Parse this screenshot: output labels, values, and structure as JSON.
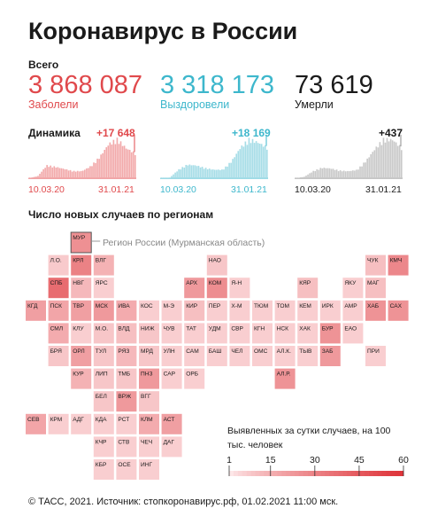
{
  "title": "Коронавирус в России",
  "total_label": "Всего",
  "cases": {
    "value": "3 868 087",
    "label": "Заболели",
    "increase": "+17 648",
    "color": "#e0494c"
  },
  "recovered": {
    "value": "3 318 173",
    "label": "Выздоровели",
    "increase": "+18 169",
    "color": "#3db7cc"
  },
  "deaths": {
    "value": "73 619",
    "label": "Умерли",
    "increase": "+437",
    "color": "#888888"
  },
  "dynamics_label": "Динамика",
  "date_start": "10.03.20",
  "date_end": "31.01.21",
  "regions_title": "Число новых случаев по регионам",
  "annotation": {
    "code": "МУР",
    "text": "Регион России (Мурманская область)"
  },
  "legend_note": "Выявленных за сутки случаев, на 100 тыс. человек",
  "legend_ticks": [
    "1",
    "15",
    "30",
    "45",
    "60"
  ],
  "footer": "© ТАСС, 2021. Источник: стопкоронавирус.рф, 01.02.2021 11:00 мск.",
  "chart_data": [
    {
      "type": "area",
      "name": "Заболели",
      "x_range": [
        "10.03.20",
        "31.01.21"
      ],
      "last_increase": 17648,
      "monthly_daily_approx": [
        20,
        1500,
        9000,
        8000,
        6500,
        5000,
        5000,
        8500,
        15000,
        24000,
        27500,
        21000,
        17648
      ]
    },
    {
      "type": "area",
      "name": "Выздоровели",
      "x_range": [
        "10.03.20",
        "31.01.21"
      ],
      "last_increase": 18169,
      "monthly_daily_approx": [
        0,
        300,
        5000,
        8000,
        7500,
        6000,
        5000,
        5000,
        10000,
        18000,
        23000,
        21000,
        18169
      ]
    },
    {
      "type": "area",
      "name": "Умерли",
      "x_range": [
        "10.03.20",
        "31.01.21"
      ],
      "last_increase": 437,
      "monthly_daily_approx": [
        0,
        20,
        100,
        150,
        140,
        110,
        100,
        120,
        250,
        420,
        560,
        550,
        437
      ]
    },
    {
      "type": "heatmap",
      "title": "Число новых случаев по регионам",
      "legend": {
        "ticks": [
          1,
          15,
          30,
          45,
          60
        ],
        "unit": "Выявленных за сутки случаев, на 100 тыс. человек"
      },
      "cells": [
        {
          "code": "МУР",
          "row": 0,
          "col": 2,
          "value": 25
        },
        {
          "code": "НАО",
          "row": 1,
          "col": 8,
          "value": 8
        },
        {
          "code": "ЧУК",
          "row": 1,
          "col": 15,
          "value": 10
        },
        {
          "code": "КМЧ",
          "row": 1,
          "col": 16,
          "value": 28
        },
        {
          "code": "Л.О.",
          "row": 1,
          "col": 1,
          "value": 7
        },
        {
          "code": "КРЛ",
          "row": 1,
          "col": 2,
          "value": 30
        },
        {
          "code": "ВЛГ",
          "row": 1,
          "col": 3,
          "value": 14
        },
        {
          "code": "СПБ",
          "row": 2,
          "col": 1,
          "value": 38
        },
        {
          "code": "НВГ",
          "row": 2,
          "col": 2,
          "value": 12
        },
        {
          "code": "ЯРС",
          "row": 2,
          "col": 3,
          "value": 6
        },
        {
          "code": "АРХ",
          "row": 2,
          "col": 7,
          "value": 22
        },
        {
          "code": "КОМ",
          "row": 2,
          "col": 8,
          "value": 26
        },
        {
          "code": "Я-Н",
          "row": 2,
          "col": 9,
          "value": 6
        },
        {
          "code": "КЯР",
          "row": 2,
          "col": 12,
          "value": 10
        },
        {
          "code": "ЯКУ",
          "row": 2,
          "col": 14,
          "value": 6
        },
        {
          "code": "МАГ",
          "row": 2,
          "col": 15,
          "value": 10
        },
        {
          "code": "КГД",
          "row": 3,
          "col": 0,
          "value": 20
        },
        {
          "code": "ПСК",
          "row": 3,
          "col": 1,
          "value": 18
        },
        {
          "code": "ТВР",
          "row": 3,
          "col": 2,
          "value": 20
        },
        {
          "code": "МСК",
          "row": 3,
          "col": 3,
          "value": 22
        },
        {
          "code": "ИВА",
          "row": 3,
          "col": 4,
          "value": 16
        },
        {
          "code": "КОС",
          "row": 3,
          "col": 5,
          "value": 6
        },
        {
          "code": "М-Э",
          "row": 3,
          "col": 6,
          "value": 6
        },
        {
          "code": "КИР",
          "row": 3,
          "col": 7,
          "value": 10
        },
        {
          "code": "ПЕР",
          "row": 3,
          "col": 8,
          "value": 6
        },
        {
          "code": "Х-М",
          "row": 3,
          "col": 9,
          "value": 6
        },
        {
          "code": "ТЮМ",
          "row": 3,
          "col": 10,
          "value": 6
        },
        {
          "code": "ТОМ",
          "row": 3,
          "col": 11,
          "value": 6
        },
        {
          "code": "КЕМ",
          "row": 3,
          "col": 12,
          "value": 6
        },
        {
          "code": "ИРК",
          "row": 3,
          "col": 13,
          "value": 6
        },
        {
          "code": "АМР",
          "row": 3,
          "col": 14,
          "value": 6
        },
        {
          "code": "ХАБ",
          "row": 3,
          "col": 15,
          "value": 24
        },
        {
          "code": "САХ",
          "row": 3,
          "col": 16,
          "value": 24
        },
        {
          "code": "СМЛ",
          "row": 4,
          "col": 1,
          "value": 16
        },
        {
          "code": "КЛУ",
          "row": 4,
          "col": 2,
          "value": 6
        },
        {
          "code": "М.О.",
          "row": 4,
          "col": 3,
          "value": 8
        },
        {
          "code": "ВЛД",
          "row": 4,
          "col": 4,
          "value": 10
        },
        {
          "code": "НИЖ",
          "row": 4,
          "col": 5,
          "value": 8
        },
        {
          "code": "ЧУВ",
          "row": 4,
          "col": 6,
          "value": 6
        },
        {
          "code": "ТАТ",
          "row": 4,
          "col": 7,
          "value": 6
        },
        {
          "code": "УДМ",
          "row": 4,
          "col": 8,
          "value": 6
        },
        {
          "code": "СВР",
          "row": 4,
          "col": 9,
          "value": 6
        },
        {
          "code": "КГН",
          "row": 4,
          "col": 10,
          "value": 6
        },
        {
          "code": "НСК",
          "row": 4,
          "col": 11,
          "value": 6
        },
        {
          "code": "ХАК",
          "row": 4,
          "col": 12,
          "value": 6
        },
        {
          "code": "БУР",
          "row": 4,
          "col": 13,
          "value": 24
        },
        {
          "code": "ЕАО",
          "row": 4,
          "col": 14,
          "value": 6
        },
        {
          "code": "БРЯ",
          "row": 5,
          "col": 1,
          "value": 8
        },
        {
          "code": "ОРЛ",
          "row": 5,
          "col": 2,
          "value": 20
        },
        {
          "code": "ТУЛ",
          "row": 5,
          "col": 3,
          "value": 8
        },
        {
          "code": "РЯЗ",
          "row": 5,
          "col": 4,
          "value": 12
        },
        {
          "code": "МРД",
          "row": 5,
          "col": 5,
          "value": 8
        },
        {
          "code": "УЛН",
          "row": 5,
          "col": 6,
          "value": 6
        },
        {
          "code": "САМ",
          "row": 5,
          "col": 7,
          "value": 6
        },
        {
          "code": "БАШ",
          "row": 5,
          "col": 8,
          "value": 6
        },
        {
          "code": "ЧЕЛ",
          "row": 5,
          "col": 9,
          "value": 6
        },
        {
          "code": "ОМС",
          "row": 5,
          "col": 10,
          "value": 6
        },
        {
          "code": "АЛ.К.",
          "row": 5,
          "col": 11,
          "value": 6
        },
        {
          "code": "ТЫВ",
          "row": 5,
          "col": 12,
          "value": 6
        },
        {
          "code": "ЗАБ",
          "row": 5,
          "col": 13,
          "value": 22
        },
        {
          "code": "ПРИ",
          "row": 5,
          "col": 15,
          "value": 6
        },
        {
          "code": "КУР",
          "row": 6,
          "col": 2,
          "value": 14
        },
        {
          "code": "ЛИП",
          "row": 6,
          "col": 3,
          "value": 8
        },
        {
          "code": "ТМБ",
          "row": 6,
          "col": 4,
          "value": 8
        },
        {
          "code": "ПНЗ",
          "row": 6,
          "col": 5,
          "value": 22
        },
        {
          "code": "САР",
          "row": 6,
          "col": 6,
          "value": 6
        },
        {
          "code": "ОРБ",
          "row": 6,
          "col": 7,
          "value": 6
        },
        {
          "code": "АЛ.Р.",
          "row": 6,
          "col": 11,
          "value": 24
        },
        {
          "code": "БЕЛ",
          "row": 7,
          "col": 3,
          "value": 8
        },
        {
          "code": "ВРЖ",
          "row": 7,
          "col": 4,
          "value": 22
        },
        {
          "code": "ВГГ",
          "row": 7,
          "col": 5,
          "value": 8
        },
        {
          "code": "СЕВ",
          "row": 8,
          "col": 0,
          "value": 18
        },
        {
          "code": "КРМ",
          "row": 8,
          "col": 1,
          "value": 6
        },
        {
          "code": "АДГ",
          "row": 8,
          "col": 2,
          "value": 6
        },
        {
          "code": "КДА",
          "row": 8,
          "col": 3,
          "value": 6
        },
        {
          "code": "РСТ",
          "row": 8,
          "col": 4,
          "value": 6
        },
        {
          "code": "КЛМ",
          "row": 8,
          "col": 5,
          "value": 16
        },
        {
          "code": "АСТ",
          "row": 8,
          "col": 6,
          "value": 20
        },
        {
          "code": "КЧР",
          "row": 9,
          "col": 3,
          "value": 6
        },
        {
          "code": "СТВ",
          "row": 9,
          "col": 4,
          "value": 6
        },
        {
          "code": "ЧЕЧ",
          "row": 9,
          "col": 5,
          "value": 6
        },
        {
          "code": "ДАГ",
          "row": 9,
          "col": 6,
          "value": 6
        },
        {
          "code": "КБР",
          "row": 10,
          "col": 3,
          "value": 6
        },
        {
          "code": "ОСЕ",
          "row": 10,
          "col": 4,
          "value": 6
        },
        {
          "code": "ИНГ",
          "row": 10,
          "col": 5,
          "value": 6
        }
      ]
    }
  ]
}
